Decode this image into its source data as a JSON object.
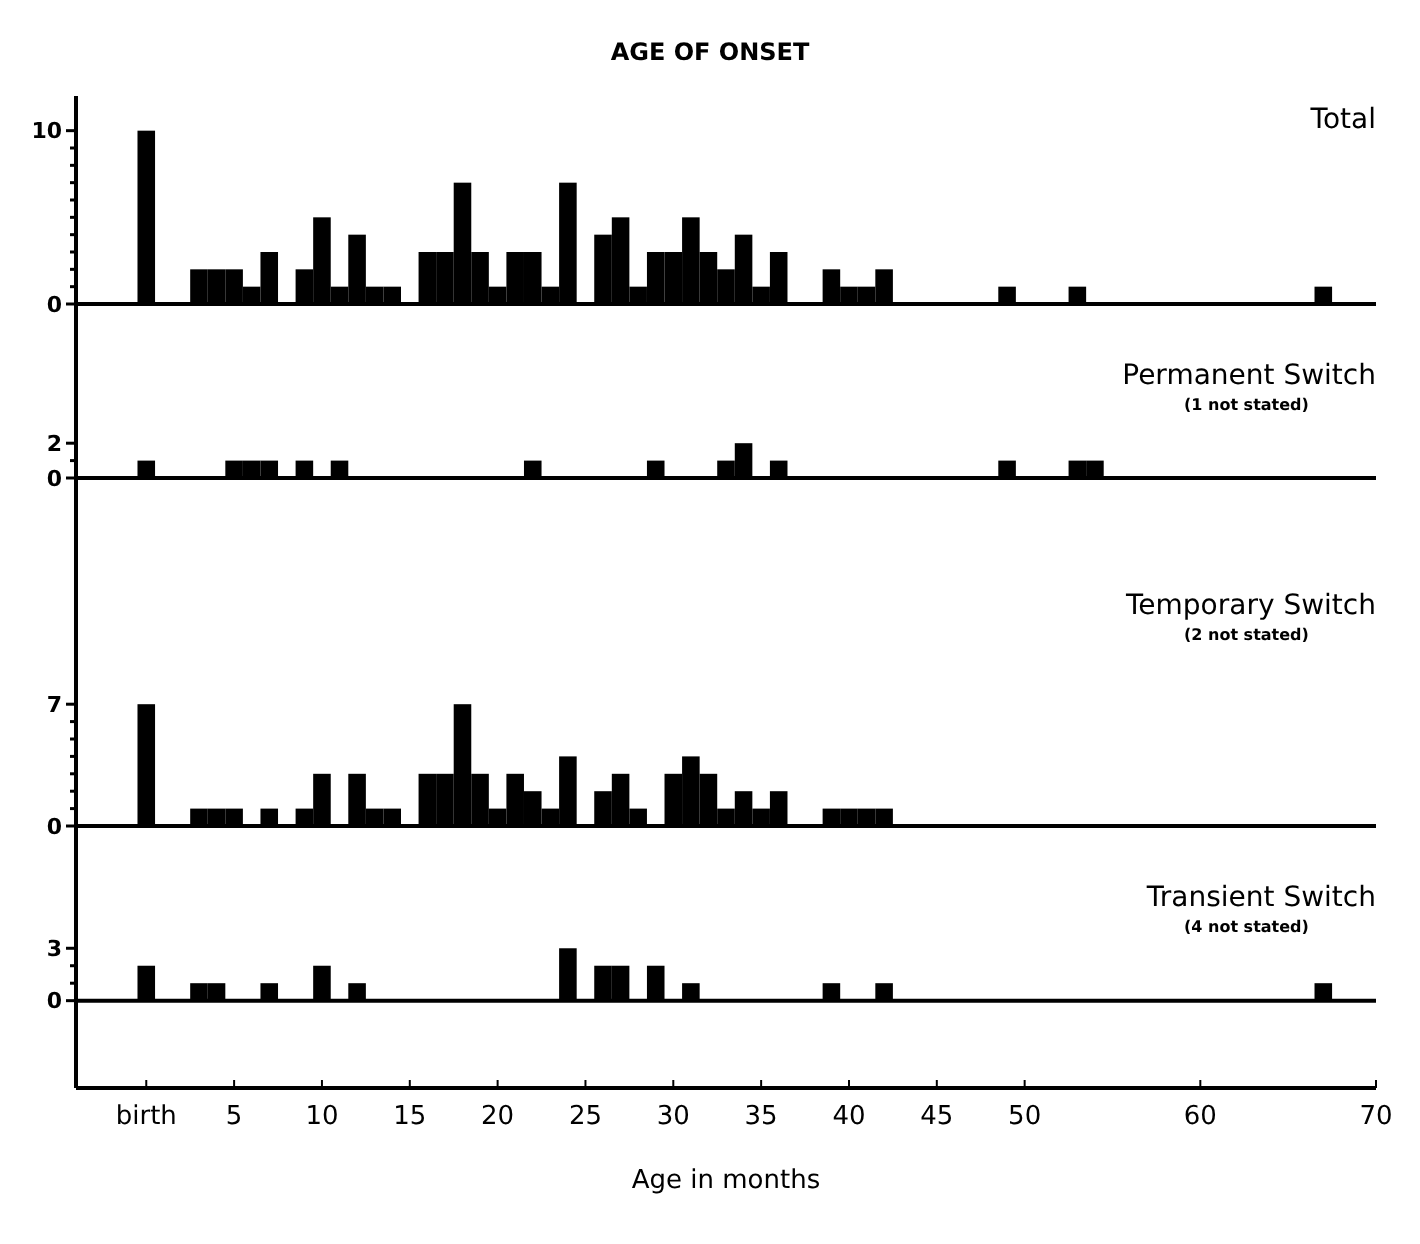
{
  "chart_data": [
    {
      "type": "bar",
      "title": "AGE OF ONSET",
      "xlim": [
        -4,
        70
      ],
      "ylim": [
        0,
        12
      ],
      "yticks": [
        0,
        {
          "value": 1,
          "label": null
        },
        {
          "value": 2,
          "label": null
        },
        {
          "value": 3,
          "label": null
        },
        {
          "value": 4,
          "label": null
        },
        {
          "value": 5,
          "label": null
        },
        {
          "value": 6,
          "label": null
        },
        {
          "value": 7,
          "label": null
        },
        {
          "value": 8,
          "label": null
        },
        {
          "value": 9,
          "label": null
        },
        10
      ],
      "tick_labels": "y",
      "series": [
        {
          "name": "Total",
          "color": "#000000",
          "x": [
            0,
            3,
            4,
            5,
            6,
            7,
            9,
            10,
            11,
            12,
            13,
            14,
            16,
            17,
            18,
            19,
            20,
            21,
            22,
            23,
            24,
            26,
            27,
            28,
            29,
            30,
            31,
            32,
            33,
            34,
            35,
            36,
            39,
            40,
            41,
            42,
            49,
            53,
            67
          ],
          "values": [
            10,
            2,
            2,
            2,
            1,
            3,
            2,
            5,
            1,
            4,
            1,
            1,
            3,
            3,
            7,
            3,
            1,
            3,
            3,
            1,
            7,
            4,
            5,
            1,
            3,
            3,
            5,
            3,
            2,
            4,
            1,
            3,
            2,
            1,
            1,
            2,
            1,
            1,
            1
          ]
        }
      ]
    },
    {
      "type": "bar",
      "xlim": [
        -4,
        70
      ],
      "ylim": [
        0,
        10
      ],
      "yticks": [
        0,
        {
          "value": 1,
          "label": null
        },
        2
      ],
      "tick_labels": "y",
      "annotations": [
        "(1 not stated)"
      ],
      "series": [
        {
          "name": "Permanent Switch",
          "color": "#000000",
          "x": [
            0,
            5,
            6,
            7,
            9,
            11,
            22,
            29,
            33,
            34,
            36,
            49,
            53,
            54
          ],
          "values": [
            1,
            1,
            1,
            1,
            1,
            1,
            1,
            1,
            1,
            2,
            1,
            1,
            1,
            1
          ]
        }
      ]
    },
    {
      "type": "bar",
      "xlim": [
        -4,
        70
      ],
      "ylim": [
        0,
        20
      ],
      "yticks": [
        0,
        {
          "value": 1,
          "label": null
        },
        {
          "value": 2,
          "label": null
        },
        {
          "value": 3,
          "label": null
        },
        {
          "value": 4,
          "label": null
        },
        {
          "value": 5,
          "label": null
        },
        {
          "value": 6,
          "label": null
        },
        7
      ],
      "tick_labels": "y",
      "annotations": [
        "(2 not stated)"
      ],
      "series": [
        {
          "name": "Temporary Switch",
          "color": "#000000",
          "x": [
            0,
            3,
            4,
            5,
            7,
            9,
            10,
            12,
            13,
            14,
            16,
            17,
            18,
            19,
            20,
            21,
            22,
            23,
            24,
            26,
            27,
            28,
            30,
            31,
            32,
            33,
            34,
            35,
            36,
            39,
            40,
            41,
            42
          ],
          "values": [
            7,
            1,
            1,
            1,
            1,
            1,
            3,
            3,
            1,
            1,
            3,
            3,
            7,
            3,
            1,
            3,
            2,
            1,
            4,
            2,
            3,
            1,
            3,
            4,
            3,
            1,
            2,
            1,
            2,
            1,
            1,
            1,
            1
          ]
        }
      ]
    },
    {
      "type": "bar",
      "xlabel": "Age in months",
      "xlim": [
        -4,
        70
      ],
      "xticks": [
        {
          "value": 0,
          "label": "birth"
        },
        5,
        10,
        15,
        20,
        25,
        30,
        35,
        40,
        45,
        50,
        60,
        70
      ],
      "ylim": [
        -5,
        10
      ],
      "yticks": [
        0,
        {
          "value": 1,
          "label": null
        },
        {
          "value": 2,
          "label": null
        },
        3
      ],
      "annotations": [
        "(4 not stated)"
      ],
      "series": [
        {
          "name": "Transient Switch",
          "color": "#000000",
          "x": [
            0,
            3,
            4,
            7,
            10,
            12,
            24,
            26,
            27,
            29,
            31,
            39,
            42,
            67
          ],
          "values": [
            2,
            1,
            1,
            1,
            2,
            1,
            3,
            2,
            2,
            2,
            1,
            1,
            1,
            1
          ]
        }
      ]
    }
  ]
}
